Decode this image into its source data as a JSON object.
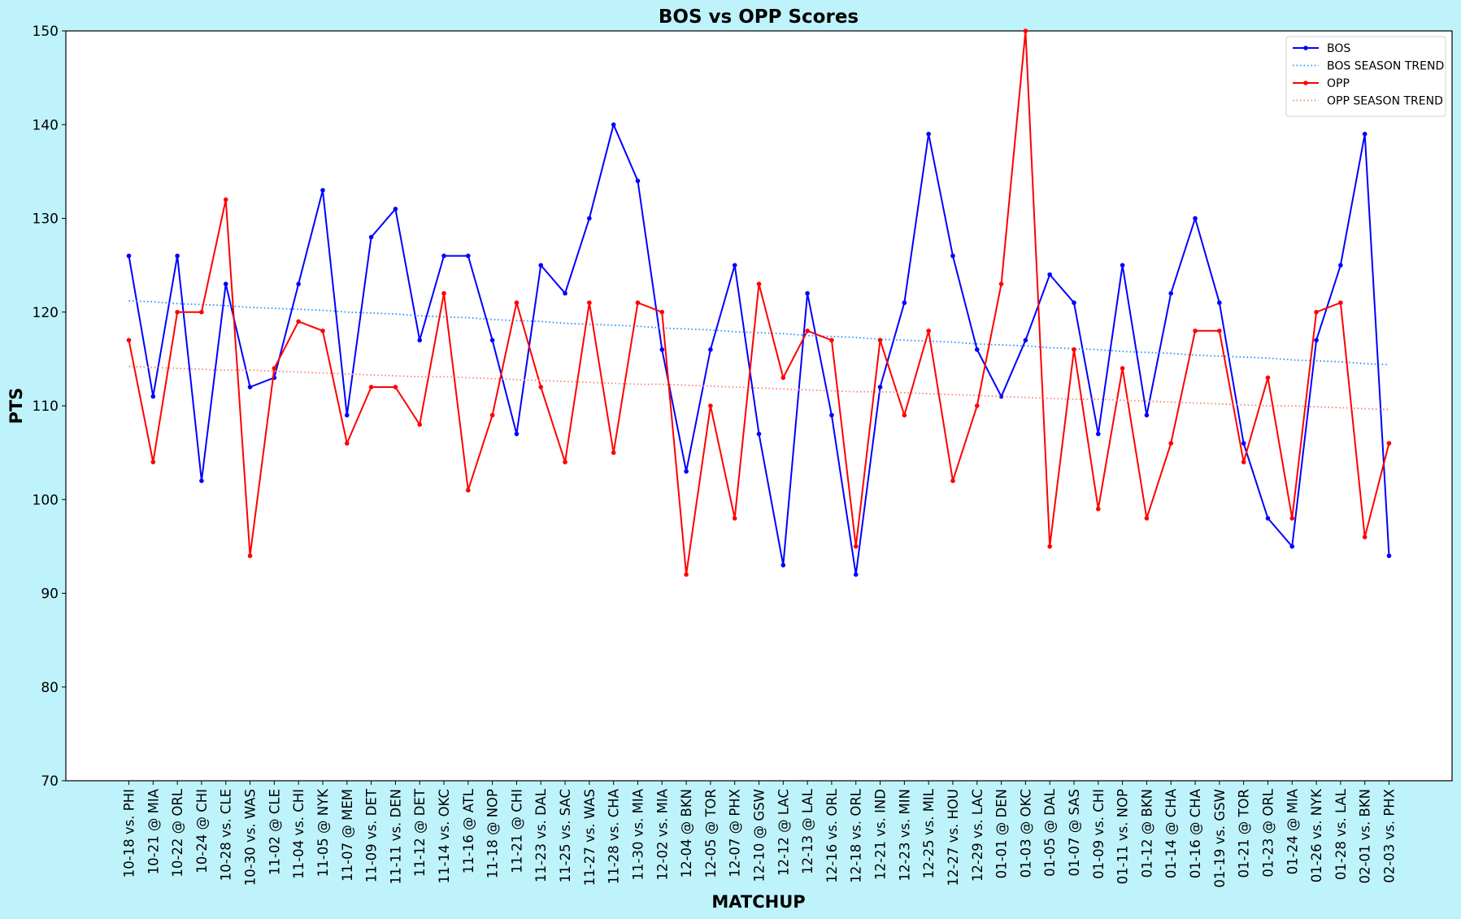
{
  "chart_data": {
    "type": "line",
    "title": "BOS vs OPP Scores",
    "xlabel": "MATCHUP",
    "ylabel": "PTS",
    "categories": [
      "10-18 vs. PHI",
      "10-21 @ MIA",
      "10-22 @ ORL",
      "10-24 @ CHI",
      "10-28 vs. CLE",
      "10-30 vs. WAS",
      "11-02 @ CLE",
      "11-04 vs. CHI",
      "11-05 @ NYK",
      "11-07 @ MEM",
      "11-09 vs. DET",
      "11-11 vs. DEN",
      "11-12 @ DET",
      "11-14 vs. OKC",
      "11-16 @ ATL",
      "11-18 @ NOP",
      "11-21 @ CHI",
      "11-23 vs. DAL",
      "11-25 vs. SAC",
      "11-27 vs. WAS",
      "11-28 vs. CHA",
      "11-30 vs. MIA",
      "12-02 vs. MIA",
      "12-04 @ BKN",
      "12-05 @ TOR",
      "12-07 @ PHX",
      "12-10 @ GSW",
      "12-12 @ LAC",
      "12-13 @ LAL",
      "12-16 vs. ORL",
      "12-18 vs. ORL",
      "12-21 vs. IND",
      "12-23 vs. MIN",
      "12-25 vs. MIL",
      "12-27 vs. HOU",
      "12-29 vs. LAC",
      "01-01 @ DEN",
      "01-03 @ OKC",
      "01-05 @ DAL",
      "01-07 @ SAS",
      "01-09 vs. CHI",
      "01-11 vs. NOP",
      "01-12 @ BKN",
      "01-14 @ CHA",
      "01-16 @ CHA",
      "01-19 vs. GSW",
      "01-21 @ TOR",
      "01-23 @ ORL",
      "01-24 @ MIA",
      "01-26 vs. NYK",
      "01-28 vs. LAL",
      "02-01 vs. BKN",
      "02-03 vs. PHX"
    ],
    "series": [
      {
        "name": "BOS",
        "color": "#0000ff",
        "style": "solid",
        "markers": true,
        "values": [
          126,
          111,
          126,
          102,
          123,
          112,
          113,
          123,
          133,
          109,
          128,
          131,
          117,
          126,
          126,
          117,
          107,
          125,
          122,
          130,
          140,
          134,
          116,
          103,
          116,
          125,
          107,
          93,
          122,
          109,
          92,
          112,
          121,
          139,
          126,
          116,
          111,
          117,
          124,
          121,
          107,
          125,
          109,
          122,
          130,
          121,
          106,
          98,
          95,
          117,
          125,
          139,
          94
        ]
      },
      {
        "name": "BOS SEASON TREND",
        "color": "#1e90ff",
        "style": "dotted",
        "markers": false,
        "values": [
          121.2,
          121.1,
          120.9,
          120.8,
          120.7,
          120.5,
          120.4,
          120.3,
          120.2,
          120.0,
          119.9,
          119.8,
          119.6,
          119.5,
          119.4,
          119.2,
          119.1,
          119.0,
          118.8,
          118.7,
          118.6,
          118.5,
          118.3,
          118.2,
          118.1,
          117.9,
          117.8,
          117.7,
          117.5,
          117.4,
          117.3,
          117.1,
          117.0,
          116.9,
          116.8,
          116.6,
          116.5,
          116.4,
          116.2,
          116.1,
          116.0,
          115.8,
          115.7,
          115.6,
          115.4,
          115.3,
          115.2,
          115.1,
          114.9,
          114.8,
          114.7,
          114.5,
          114.4
        ]
      },
      {
        "name": "OPP",
        "color": "#ff0000",
        "style": "solid",
        "markers": true,
        "values": [
          117,
          104,
          120,
          120,
          132,
          94,
          114,
          119,
          118,
          106,
          112,
          112,
          108,
          122,
          101,
          109,
          121,
          112,
          104,
          121,
          105,
          121,
          120,
          92,
          110,
          98,
          123,
          113,
          118,
          117,
          95,
          117,
          109,
          118,
          102,
          110,
          123,
          150,
          95,
          116,
          99,
          114,
          98,
          106,
          118,
          118,
          104,
          113,
          98,
          120,
          121,
          96,
          106
        ]
      },
      {
        "name": "OPP SEASON TREND",
        "color": "#fa8072",
        "style": "dotted",
        "markers": false,
        "values": [
          114.2,
          114.1,
          114.0,
          113.9,
          113.8,
          113.8,
          113.7,
          113.6,
          113.5,
          113.4,
          113.3,
          113.2,
          113.1,
          113.1,
          113.0,
          112.9,
          112.8,
          112.7,
          112.6,
          112.5,
          112.4,
          112.3,
          112.3,
          112.2,
          112.1,
          112.0,
          111.9,
          111.8,
          111.7,
          111.6,
          111.5,
          111.5,
          111.4,
          111.3,
          111.2,
          111.1,
          111.0,
          110.9,
          110.8,
          110.7,
          110.7,
          110.6,
          110.5,
          110.4,
          110.3,
          110.2,
          110.1,
          110.0,
          110.0,
          109.9,
          109.8,
          109.7,
          109.6
        ]
      }
    ],
    "ylim": [
      70,
      150
    ],
    "yticks": [
      70,
      80,
      90,
      100,
      110,
      120,
      130,
      140,
      150
    ],
    "grid": false,
    "legend": "upper right"
  }
}
